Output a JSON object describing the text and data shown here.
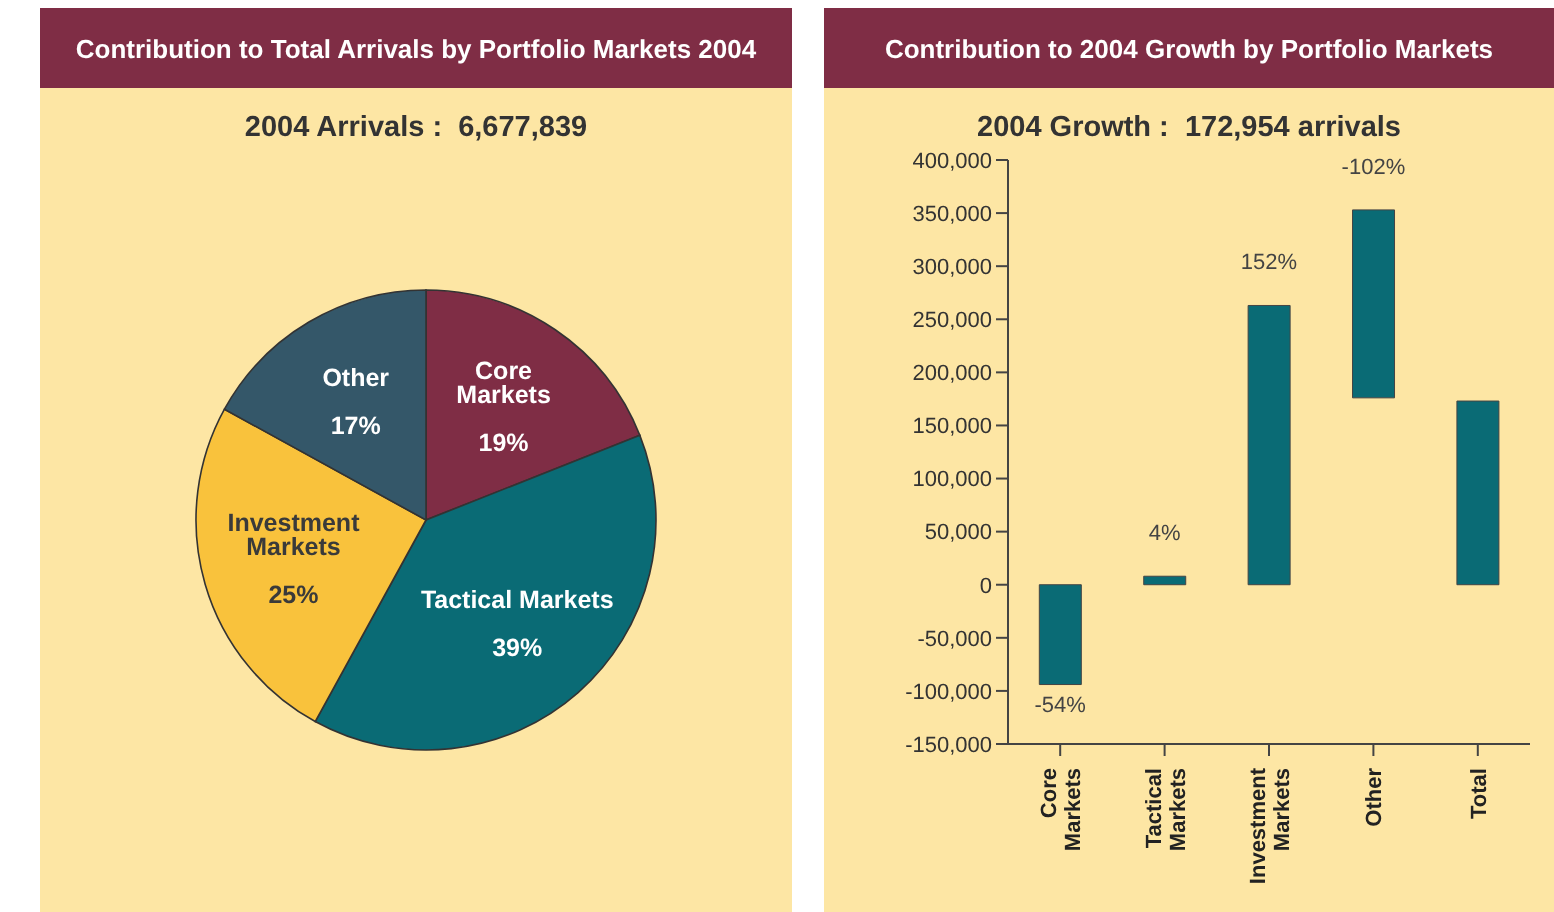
{
  "chart_data": [
    {
      "type": "pie",
      "title": "Contribution to Total Arrivals by Portfolio Markets 2004",
      "subtitle": "2004 Arrivals :  6,677,839",
      "categories": [
        "Core Markets",
        "Tactical Markets",
        "Investment Markets",
        "Other"
      ],
      "values": [
        19,
        39,
        25,
        17
      ],
      "value_labels": [
        "19%",
        "39%",
        "25%",
        "17%"
      ],
      "colors": [
        "#7f2d45",
        "#0a6b75",
        "#f9c23c",
        "#345769"
      ],
      "legend": false
    },
    {
      "type": "bar",
      "title": "Contribution to 2004 Growth by Portfolio Markets",
      "subtitle": "2004 Growth :  172,954 arrivals",
      "categories": [
        "Core Markets",
        "Tactical Markets",
        "Investment Markets",
        "Other",
        "Total"
      ],
      "values": [
        -94000,
        8000,
        263000,
        -177000,
        173000
      ],
      "base": [
        0,
        0,
        0,
        353000,
        0
      ],
      "annotations": [
        {
          "text": "-54%",
          "x": "Core Markets",
          "y": -94000
        },
        {
          "text": "4%",
          "x": "Tactical Markets",
          "y": 8000
        },
        {
          "text": "152%",
          "x": "Investment Markets",
          "y": 263000
        },
        {
          "text": "-102%",
          "x": "Other",
          "y": 353000
        }
      ],
      "color": "#0a6b75",
      "ylim": [
        -150000,
        400000
      ],
      "yticks": [
        {
          "value": -150000,
          "label": "-150,000"
        },
        {
          "value": -100000,
          "label": "-100,000"
        },
        {
          "value": -50000,
          "label": "-50,000"
        },
        0,
        {
          "value": 50000,
          "label": "50,000"
        },
        {
          "value": 100000,
          "label": "100,000"
        },
        {
          "value": 150000,
          "label": "150,000"
        },
        {
          "value": 200000,
          "label": "200,000"
        },
        {
          "value": 250000,
          "label": "250,000"
        },
        {
          "value": 300000,
          "label": "300,000"
        },
        {
          "value": 350000,
          "label": "350,000"
        },
        {
          "value": 400000,
          "label": "400,000"
        }
      ],
      "grid": false,
      "legend": false
    }
  ]
}
